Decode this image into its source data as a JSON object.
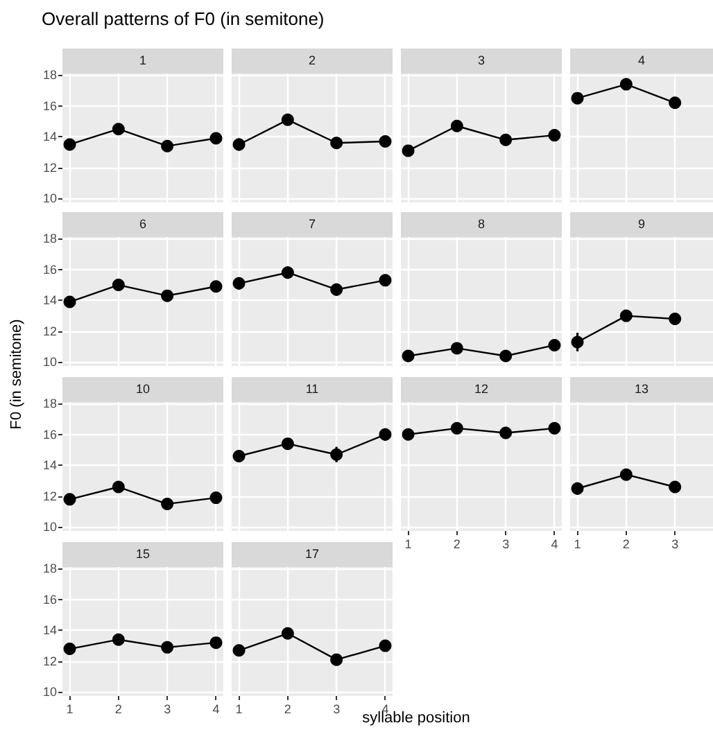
{
  "chart_data": [
    {
      "type": "line",
      "title": "Overall patterns of F0 (in semitone)",
      "subtitle": "1",
      "x": [
        1,
        2,
        3,
        4
      ],
      "xlim": [
        0.85,
        4.15
      ],
      "xticks": [
        1,
        2,
        3,
        4
      ],
      "ylim": [
        9.75,
        18.1
      ],
      "yticks": [
        10,
        12,
        14,
        16,
        18
      ],
      "grid": true,
      "marker": "circle",
      "tick_labels": "y",
      "series": [
        {
          "color": "#000000",
          "values": [
            13.5,
            14.5,
            13.4,
            13.9
          ],
          "errors": [
            0.3,
            null,
            0.3,
            null
          ]
        }
      ]
    },
    {
      "type": "line",
      "subtitle": "2",
      "x": [
        1,
        2,
        3,
        4
      ],
      "xlim": [
        0.85,
        4.15
      ],
      "xticks": [
        1,
        2,
        3,
        4
      ],
      "ylim": [
        9.75,
        18.1
      ],
      "yticks": [
        10,
        12,
        14,
        16,
        18
      ],
      "grid": true,
      "marker": "circle",
      "tick_labels": false,
      "series": [
        {
          "color": "#000000",
          "values": [
            13.5,
            15.1,
            13.6,
            13.7
          ],
          "errors": [
            0.4,
            null,
            null,
            null
          ]
        }
      ]
    },
    {
      "type": "line",
      "subtitle": "3",
      "x": [
        1,
        2,
        3,
        4
      ],
      "xlim": [
        0.85,
        4.15
      ],
      "xticks": [
        1,
        2,
        3,
        4
      ],
      "ylim": [
        9.75,
        18.1
      ],
      "yticks": [
        10,
        12,
        14,
        16,
        18
      ],
      "grid": true,
      "marker": "circle",
      "tick_labels": false,
      "series": [
        {
          "color": "#000000",
          "values": [
            13.1,
            14.7,
            13.8,
            14.1
          ]
        }
      ]
    },
    {
      "type": "line",
      "subtitle": "4",
      "x": [
        1,
        2,
        3
      ],
      "xlim": [
        0.85,
        3.78
      ],
      "xticks": [
        1,
        2,
        3
      ],
      "ylim": [
        9.75,
        18.1
      ],
      "yticks": [
        10,
        12,
        14,
        16,
        18
      ],
      "grid": true,
      "marker": "circle",
      "tick_labels": false,
      "series": [
        {
          "color": "#000000",
          "values": [
            16.5,
            17.4,
            16.2
          ]
        }
      ]
    },
    {
      "type": "line",
      "subtitle": "6",
      "ylabel": "F0 (in semitone)",
      "x": [
        1,
        2,
        3,
        4
      ],
      "xlim": [
        0.85,
        4.15
      ],
      "xticks": [
        1,
        2,
        3,
        4
      ],
      "ylim": [
        9.75,
        18.1
      ],
      "yticks": [
        10,
        12,
        14,
        16,
        18
      ],
      "grid": true,
      "marker": "circle",
      "tick_labels": "y",
      "series": [
        {
          "color": "#000000",
          "values": [
            13.9,
            15.0,
            14.3,
            14.9
          ]
        }
      ]
    },
    {
      "type": "line",
      "subtitle": "7",
      "x": [
        1,
        2,
        3,
        4
      ],
      "xlim": [
        0.85,
        4.15
      ],
      "xticks": [
        1,
        2,
        3,
        4
      ],
      "ylim": [
        9.75,
        18.1
      ],
      "yticks": [
        10,
        12,
        14,
        16,
        18
      ],
      "grid": true,
      "marker": "circle",
      "tick_labels": false,
      "series": [
        {
          "color": "#000000",
          "values": [
            15.1,
            15.8,
            14.7,
            15.3
          ],
          "errors": [
            0.4,
            0.4,
            0.4,
            0.3
          ]
        }
      ]
    },
    {
      "type": "line",
      "subtitle": "8",
      "x": [
        1,
        2,
        3,
        4
      ],
      "xlim": [
        0.85,
        4.15
      ],
      "xticks": [
        1,
        2,
        3,
        4
      ],
      "ylim": [
        9.75,
        18.1
      ],
      "yticks": [
        10,
        12,
        14,
        16,
        18
      ],
      "grid": true,
      "marker": "circle",
      "tick_labels": false,
      "series": [
        {
          "color": "#000000",
          "values": [
            10.4,
            10.9,
            10.4,
            11.1
          ]
        }
      ]
    },
    {
      "type": "line",
      "subtitle": "9",
      "x": [
        1,
        2,
        3
      ],
      "xlim": [
        0.85,
        3.78
      ],
      "xticks": [
        1,
        2,
        3
      ],
      "ylim": [
        9.75,
        18.1
      ],
      "yticks": [
        10,
        12,
        14,
        16,
        18
      ],
      "grid": true,
      "marker": "circle",
      "tick_labels": false,
      "series": [
        {
          "color": "#000000",
          "values": [
            11.3,
            13.0,
            12.8
          ],
          "errors": [
            0.6,
            0.3,
            0.3
          ]
        }
      ]
    },
    {
      "type": "line",
      "subtitle": "10",
      "x": [
        1,
        2,
        3,
        4
      ],
      "xlim": [
        0.85,
        4.15
      ],
      "xticks": [
        1,
        2,
        3,
        4
      ],
      "ylim": [
        9.75,
        18.1
      ],
      "yticks": [
        10,
        12,
        14,
        16,
        18
      ],
      "grid": true,
      "marker": "circle",
      "tick_labels": "y",
      "series": [
        {
          "color": "#000000",
          "values": [
            11.8,
            12.6,
            11.5,
            11.9
          ],
          "errors": [
            0.3,
            null,
            null,
            null
          ]
        }
      ]
    },
    {
      "type": "line",
      "subtitle": "11",
      "x": [
        1,
        2,
        3,
        4
      ],
      "xlim": [
        0.85,
        4.15
      ],
      "xticks": [
        1,
        2,
        3,
        4
      ],
      "ylim": [
        9.75,
        18.1
      ],
      "yticks": [
        10,
        12,
        14,
        16,
        18
      ],
      "grid": true,
      "marker": "circle",
      "tick_labels": false,
      "series": [
        {
          "color": "#000000",
          "values": [
            14.6,
            15.4,
            14.7,
            16.0
          ],
          "errors": [
            0.4,
            0.3,
            0.5,
            0.4
          ]
        }
      ]
    },
    {
      "type": "line",
      "subtitle": "12",
      "x": [
        1,
        2,
        3,
        4
      ],
      "xlim": [
        0.85,
        4.15
      ],
      "xticks": [
        1,
        2,
        3,
        4
      ],
      "ylim": [
        9.75,
        18.1
      ],
      "yticks": [
        10,
        12,
        14,
        16,
        18
      ],
      "grid": true,
      "marker": "circle",
      "tick_labels": "x",
      "series": [
        {
          "color": "#000000",
          "values": [
            16.0,
            16.4,
            16.1,
            16.4
          ]
        }
      ]
    },
    {
      "type": "line",
      "subtitle": "13",
      "x": [
        1,
        2,
        3
      ],
      "xlim": [
        0.85,
        3.78
      ],
      "xticks": [
        1,
        2,
        3
      ],
      "ylim": [
        9.75,
        18.1
      ],
      "yticks": [
        10,
        12,
        14,
        16,
        18
      ],
      "grid": true,
      "marker": "circle",
      "tick_labels": "x",
      "series": [
        {
          "color": "#000000",
          "values": [
            12.5,
            13.4,
            12.6
          ],
          "errors": [
            0.4,
            0.3,
            0.3
          ]
        }
      ]
    },
    {
      "type": "line",
      "subtitle": "15",
      "x": [
        1,
        2,
        3,
        4
      ],
      "xlim": [
        0.85,
        4.15
      ],
      "xticks": [
        1,
        2,
        3,
        4
      ],
      "ylim": [
        9.75,
        18.1
      ],
      "yticks": [
        10,
        12,
        14,
        16,
        18
      ],
      "grid": true,
      "marker": "circle",
      "series": [
        {
          "color": "#000000",
          "values": [
            12.8,
            13.4,
            12.9,
            13.2
          ],
          "errors": [
            null,
            null,
            null,
            0.3
          ]
        }
      ]
    },
    {
      "type": "line",
      "subtitle": "17",
      "xlabel": "syllable position",
      "x": [
        1,
        2,
        3,
        4
      ],
      "xlim": [
        0.85,
        4.15
      ],
      "xticks": [
        1,
        2,
        3,
        4
      ],
      "ylim": [
        9.75,
        18.1
      ],
      "yticks": [
        10,
        12,
        14,
        16,
        18
      ],
      "grid": true,
      "marker": "circle",
      "tick_labels": "x",
      "series": [
        {
          "color": "#000000",
          "values": [
            12.7,
            13.8,
            12.1,
            13.0
          ],
          "errors": [
            0.3,
            null,
            null,
            null
          ]
        }
      ]
    }
  ]
}
